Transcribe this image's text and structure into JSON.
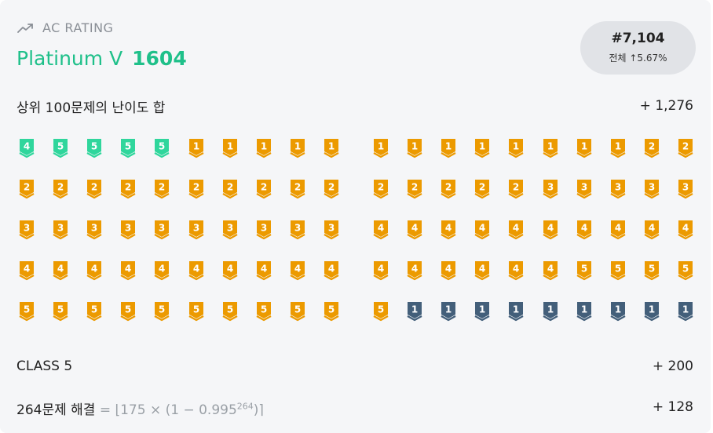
{
  "header": {
    "label": "AC RATING",
    "tier": "Platinum V",
    "rating": "1604",
    "trend_icon": "trending-up-icon"
  },
  "rank": {
    "position": "#7,104",
    "subtitle": "전체 ↑5.67%"
  },
  "top100": {
    "label": "상위 100문제의 난이도 합",
    "value": "+ 1,276"
  },
  "colors": {
    "emerald": "#2fd69c",
    "gold": "#ec9a00",
    "unrated": "#435f7a",
    "tier_text": "#1fc08a"
  },
  "badges": {
    "left": [
      [
        "e4",
        "e5",
        "e5",
        "e5",
        "e5",
        "g1",
        "g1",
        "g1",
        "g1",
        "g1"
      ],
      [
        "g2",
        "g2",
        "g2",
        "g2",
        "g2",
        "g2",
        "g2",
        "g2",
        "g2",
        "g2"
      ],
      [
        "g3",
        "g3",
        "g3",
        "g3",
        "g3",
        "g3",
        "g3",
        "g3",
        "g3",
        "g3"
      ],
      [
        "g4",
        "g4",
        "g4",
        "g4",
        "g4",
        "g4",
        "g4",
        "g4",
        "g4",
        "g4"
      ],
      [
        "g5",
        "g5",
        "g5",
        "g5",
        "g5",
        "g5",
        "g5",
        "g5",
        "g5",
        "g5"
      ]
    ],
    "right": [
      [
        "g1",
        "g1",
        "g1",
        "g1",
        "g1",
        "g1",
        "g1",
        "g1",
        "g2",
        "g2"
      ],
      [
        "g2",
        "g2",
        "g2",
        "g2",
        "g2",
        "g3",
        "g3",
        "g3",
        "g3",
        "g3"
      ],
      [
        "g4",
        "g4",
        "g4",
        "g4",
        "g4",
        "g4",
        "g4",
        "g4",
        "g4",
        "g4"
      ],
      [
        "g4",
        "g4",
        "g4",
        "g4",
        "g4",
        "g4",
        "g5",
        "g5",
        "g5",
        "g5"
      ],
      [
        "g5",
        "u1",
        "u1",
        "u1",
        "u1",
        "u1",
        "u1",
        "u1",
        "u1",
        "u1"
      ]
    ]
  },
  "class_row": {
    "label": "CLASS 5",
    "value": "+ 200"
  },
  "solved_row": {
    "label": "264문제 해결",
    "formula_prefix": "= ⌊175 × (1 − 0.995",
    "formula_exp": "264",
    "formula_suffix": ")⌉",
    "value": "+ 128"
  }
}
